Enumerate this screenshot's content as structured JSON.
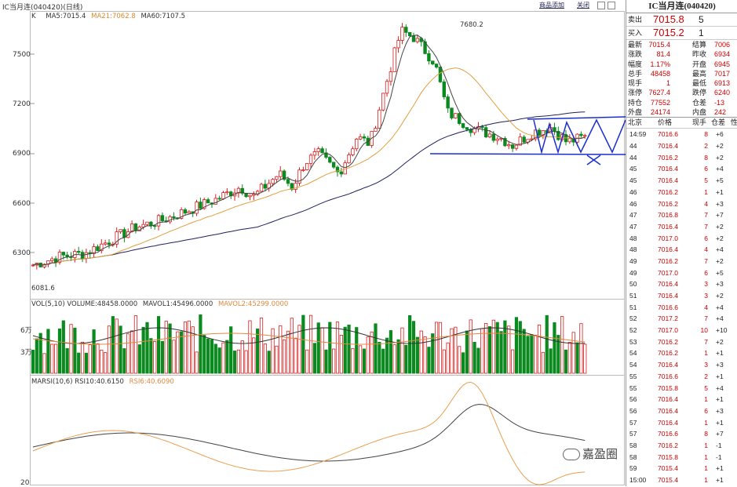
{
  "header": {
    "title": "IC当月连(040420)(日线)",
    "btn_add": "商品添加",
    "btn_close": "关闭"
  },
  "kline_legend": {
    "prefix": "K",
    "ma5": "MA5:7015.4",
    "ma21": "MA21:7062.8",
    "ma60": "MA60:7107.5"
  },
  "price_axis": [
    "7500",
    "7200",
    "6900",
    "6600",
    "6300"
  ],
  "annotations": {
    "high": "7680.2",
    "low": "6081.6"
  },
  "volume_legend": {
    "label": "VOL(5,10) VOLUME:48458.0000",
    "mavol1": "MAVOL1:45496.0000",
    "mavol2": "MAVOL2:45299.0000"
  },
  "volume_axis": [
    "6万",
    "3万"
  ],
  "rsi_legend": {
    "label": "MARSI(10,6) RSI10:40.6150",
    "rsi6": "RSI6:40.6090"
  },
  "rsi_axis": [
    "20"
  ],
  "colors": {
    "up": "#d81e1e",
    "down": "#0b8a1f",
    "ma5": "#444444",
    "ma21": "#e0a040",
    "ma60": "#202060",
    "drawing": "#1a2fd0"
  },
  "quote": {
    "title": "IC当月连(040420)",
    "ask_label": "卖出",
    "ask_price": "7015.8",
    "ask_vol": "5",
    "bid_label": "买入",
    "bid_price": "7015.2",
    "bid_vol": "1",
    "stats": [
      {
        "l1": "最新",
        "v1": "7015.4",
        "l2": "结算",
        "v2": "7006"
      },
      {
        "l1": "涨跌",
        "v1": "81.4",
        "l2": "昨收",
        "v2": "6934"
      },
      {
        "l1": "幅度",
        "v1": "1.17%",
        "l2": "开盘",
        "v2": "6945"
      },
      {
        "l1": "总手",
        "v1": "48458",
        "l2": "最高",
        "v2": "7017"
      },
      {
        "l1": "现手",
        "v1": "1",
        "l2": "最低",
        "v2": "6913"
      },
      {
        "l1": "涨停",
        "v1": "7627.4",
        "l2": "跌停",
        "v2": "6240"
      },
      {
        "l1": "持仓",
        "v1": "77552",
        "l2": "仓差",
        "v2": "-13"
      },
      {
        "l1": "外盘",
        "v1": "24174",
        "l2": "内盘",
        "v2": "242"
      }
    ],
    "tick_header": {
      "time": "北京",
      "price": "价格",
      "vol": "现手",
      "oi": "仓差",
      "extra": "性"
    },
    "ticks": [
      {
        "t": "14:59",
        "p": "7016.6",
        "v": "8",
        "d": "+6"
      },
      {
        "t": "44",
        "p": "7016.4",
        "v": "2",
        "d": "+2"
      },
      {
        "t": "44",
        "p": "7016.2",
        "v": "8",
        "d": "+2"
      },
      {
        "t": "45",
        "p": "7016.4",
        "v": "6",
        "d": "+4"
      },
      {
        "t": "45",
        "p": "7016.4",
        "v": "5",
        "d": "+5"
      },
      {
        "t": "46",
        "p": "7016.2",
        "v": "1",
        "d": "+1"
      },
      {
        "t": "46",
        "p": "7016.2",
        "v": "4",
        "d": "+3"
      },
      {
        "t": "47",
        "p": "7016.8",
        "v": "7",
        "d": "+7"
      },
      {
        "t": "47",
        "p": "7016.4",
        "v": "7",
        "d": "+2"
      },
      {
        "t": "48",
        "p": "7017.0",
        "v": "6",
        "d": "+2"
      },
      {
        "t": "48",
        "p": "7016.4",
        "v": "4",
        "d": "+4"
      },
      {
        "t": "49",
        "p": "7016.2",
        "v": "7",
        "d": "+2"
      },
      {
        "t": "49",
        "p": "7017.0",
        "v": "6",
        "d": "+5"
      },
      {
        "t": "50",
        "p": "7016.4",
        "v": "3",
        "d": "+3"
      },
      {
        "t": "51",
        "p": "7016.4",
        "v": "3",
        "d": "+2"
      },
      {
        "t": "51",
        "p": "7016.6",
        "v": "4",
        "d": "+4"
      },
      {
        "t": "52",
        "p": "7017.2",
        "v": "7",
        "d": "+4"
      },
      {
        "t": "52",
        "p": "7017.0",
        "v": "10",
        "d": "+10"
      },
      {
        "t": "53",
        "p": "7016.2",
        "v": "7",
        "d": "+2"
      },
      {
        "t": "54",
        "p": "7016.2",
        "v": "1",
        "d": "+1"
      },
      {
        "t": "54",
        "p": "7016.4",
        "v": "3",
        "d": "+3"
      },
      {
        "t": "55",
        "p": "7016.6",
        "v": "2",
        "d": "+1"
      },
      {
        "t": "55",
        "p": "7015.8",
        "v": "5",
        "d": "+4"
      },
      {
        "t": "56",
        "p": "7016.4",
        "v": "1",
        "d": "+1"
      },
      {
        "t": "56",
        "p": "7016.4",
        "v": "6",
        "d": "+3"
      },
      {
        "t": "57",
        "p": "7016.4",
        "v": "1",
        "d": "+1"
      },
      {
        "t": "57",
        "p": "7016.6",
        "v": "8",
        "d": "+7"
      },
      {
        "t": "58",
        "p": "7016.2",
        "v": "1",
        "d": "-1"
      },
      {
        "t": "58",
        "p": "7015.8",
        "v": "1",
        "d": "-1"
      },
      {
        "t": "59",
        "p": "7015.4",
        "v": "1",
        "d": "+1"
      },
      {
        "t": "15:00",
        "p": "7015.4",
        "v": "1",
        "d": "+1"
      }
    ]
  },
  "watermark": "嘉盈圈"
}
